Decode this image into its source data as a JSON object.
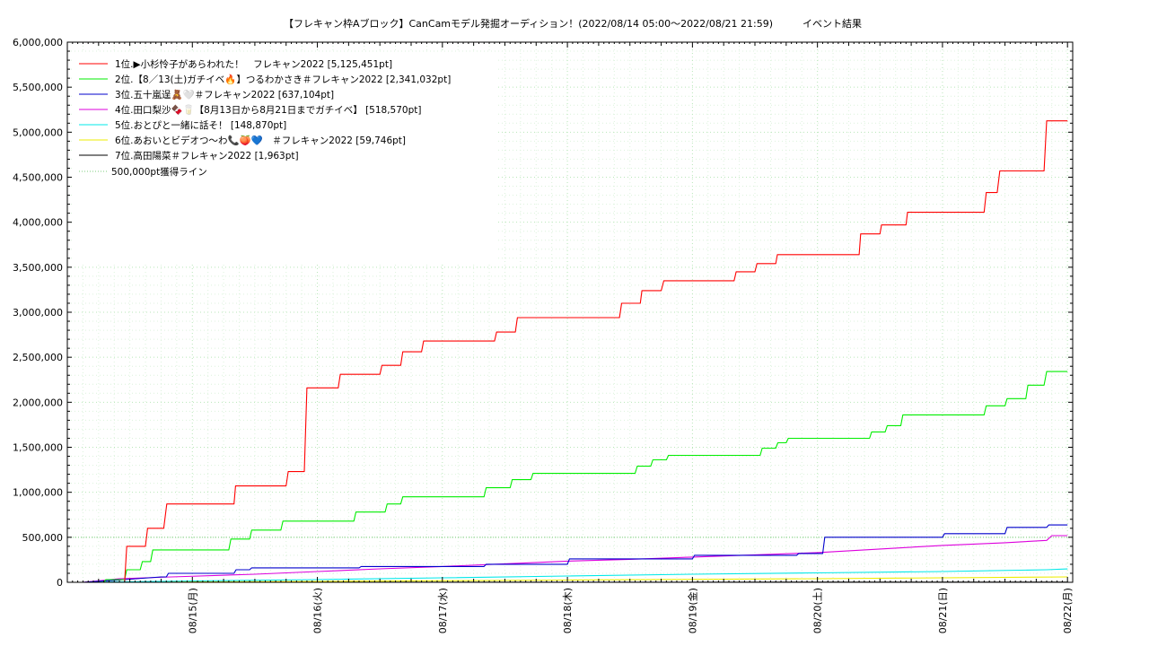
{
  "chart_data": {
    "type": "line",
    "title": "【フレキャン枠Aブロック】CanCamモデル発掘オーディション！(2022/08/14 05:00〜2022/08/21 21:59)　　　イベント結果",
    "xlabel": "",
    "ylabel": "",
    "ylim": [
      0,
      6000000
    ],
    "y_ticks": [
      {
        "value": 0,
        "label": "0"
      },
      {
        "value": 500000,
        "label": "500,000"
      },
      {
        "value": 1000000,
        "label": "1,000,000"
      },
      {
        "value": 1500000,
        "label": "1,500,000"
      },
      {
        "value": 2000000,
        "label": "2,000,000"
      },
      {
        "value": 2500000,
        "label": "2,500,000"
      },
      {
        "value": 3000000,
        "label": "3,000,000"
      },
      {
        "value": 3500000,
        "label": "3,500,000"
      },
      {
        "value": 4000000,
        "label": "4,000,000"
      },
      {
        "value": 4500000,
        "label": "4,500,000"
      },
      {
        "value": 5000000,
        "label": "5,000,000"
      },
      {
        "value": 5500000,
        "label": "5,500,000"
      },
      {
        "value": 6000000,
        "label": "6,000,000"
      }
    ],
    "x_unit": "hours since 2022/08/14 00:00",
    "xlim": [
      0,
      193
    ],
    "x_ticks": [
      {
        "value": 24,
        "label": "08/15(月)"
      },
      {
        "value": 48,
        "label": "08/16(火)"
      },
      {
        "value": 72,
        "label": "08/17(水)"
      },
      {
        "value": 96,
        "label": "08/18(木)"
      },
      {
        "value": 120,
        "label": "08/19(金)"
      },
      {
        "value": 144,
        "label": "08/20(土)"
      },
      {
        "value": 168,
        "label": "08/21(日)"
      },
      {
        "value": 192,
        "label": "08/22(月)"
      }
    ],
    "grid": true,
    "legend_position": "top-left",
    "reference_line": {
      "name": "500,000pt獲得ライン",
      "value": 500000,
      "color": "#7ccc7c"
    },
    "series": [
      {
        "name": "1位.▶小杉怜子があらわれた！　フレキャン2022 [5,125,451pt]",
        "color": "#ff0000",
        "x": [
          5,
          11,
          11.4,
          15,
          15.4,
          18.5,
          19.1,
          32,
          32.3,
          42,
          42.4,
          45.5,
          46,
          52,
          52.4,
          60,
          60.4,
          64,
          64.4,
          68,
          68.4,
          82,
          82.4,
          86,
          86.4,
          90,
          90.3,
          106,
          106.4,
          110,
          110.3,
          114,
          114.5,
          128,
          128.4,
          132,
          132.4,
          136,
          136.3,
          152,
          152.3,
          156,
          156.3,
          161,
          161.3,
          176,
          176.4,
          178.5,
          179,
          187.5,
          188,
          192
        ],
        "values": [
          0,
          0,
          400000,
          400000,
          600000,
          600000,
          870000,
          870000,
          1070000,
          1070000,
          1230000,
          1230000,
          2160000,
          2160000,
          2310000,
          2310000,
          2410000,
          2410000,
          2560000,
          2560000,
          2680000,
          2680000,
          2780000,
          2780000,
          2940000,
          2940000,
          2940000,
          2940000,
          3100000,
          3100000,
          3240000,
          3240000,
          3350000,
          3350000,
          3450000,
          3450000,
          3540000,
          3540000,
          3640000,
          3640000,
          3870000,
          3870000,
          3970000,
          3970000,
          4110000,
          4110000,
          4330000,
          4330000,
          4570000,
          4570000,
          5125451,
          5125451
        ]
      },
      {
        "name": "2位.【8／13(土)ガチイベ🔥】つるわかさき＃フレキャン2022 [2,341,032pt]",
        "color": "#00ee00",
        "x": [
          3,
          7,
          7.4,
          11,
          11.4,
          14,
          14.4,
          16,
          16.4,
          31,
          31.4,
          35,
          35.4,
          41,
          41.4,
          55,
          55.4,
          61,
          61.4,
          64,
          64.4,
          80,
          80.4,
          85,
          85.4,
          89,
          89.4,
          109,
          109.4,
          112,
          112.4,
          115,
          115.4,
          133,
          133.4,
          136,
          136.4,
          138,
          138.4,
          154,
          154.4,
          157,
          157.4,
          160,
          160.4,
          176,
          176.4,
          180,
          180.4,
          184,
          184.4,
          187.5,
          188,
          192
        ],
        "values": [
          0,
          0,
          30000,
          30000,
          140000,
          140000,
          230000,
          230000,
          360000,
          360000,
          480000,
          480000,
          580000,
          580000,
          680000,
          680000,
          780000,
          780000,
          870000,
          870000,
          950000,
          950000,
          1050000,
          1050000,
          1140000,
          1140000,
          1210000,
          1210000,
          1290000,
          1290000,
          1360000,
          1360000,
          1410000,
          1410000,
          1490000,
          1490000,
          1550000,
          1550000,
          1600000,
          1600000,
          1670000,
          1670000,
          1740000,
          1740000,
          1860000,
          1860000,
          1960000,
          1960000,
          2040000,
          2040000,
          2190000,
          2190000,
          2341032,
          2341032
        ]
      },
      {
        "name": "3位.五十嵐逞🧸🤍＃フレキャン2022 [637,104pt]",
        "color": "#0000cc",
        "x": [
          3,
          11,
          18,
          19,
          19.4,
          32,
          32.4,
          35,
          35.4,
          56,
          56.4,
          80,
          80.4,
          96,
          96.4,
          120,
          120.4,
          140,
          140.4,
          145,
          145.4,
          168,
          168.4,
          180,
          180.4,
          188,
          188.4,
          192
        ],
        "values": [
          0,
          30000,
          60000,
          60000,
          100000,
          100000,
          140000,
          140000,
          160000,
          160000,
          175000,
          175000,
          200000,
          200000,
          260000,
          260000,
          300000,
          300000,
          320000,
          320000,
          500000,
          500000,
          540000,
          540000,
          610000,
          610000,
          637104,
          637104
        ]
      },
      {
        "name": "4位.田口梨沙🍫🥛【8月13日から8月21日までガチイベ】 [518,570pt]",
        "color": "#dd00dd",
        "x": [
          3,
          10,
          20,
          36,
          48,
          60,
          72,
          84,
          96,
          108,
          120,
          132,
          144,
          156,
          168,
          180,
          188,
          189,
          192
        ],
        "values": [
          0,
          40000,
          60000,
          90000,
          120000,
          150000,
          175000,
          205000,
          235000,
          255000,
          280000,
          305000,
          330000,
          370000,
          410000,
          440000,
          465000,
          518570,
          518570
        ]
      },
      {
        "name": "5位.おとぴと一緒に話そ！ [148,870pt]",
        "color": "#00e8e8",
        "x": [
          3,
          10,
          24,
          48,
          72,
          96,
          120,
          144,
          168,
          188,
          192
        ],
        "values": [
          0,
          5000,
          15000,
          30000,
          50000,
          70000,
          90000,
          105000,
          120000,
          140000,
          148870
        ]
      },
      {
        "name": "6位.あおいとビデオつ〜わ📞🍑💙　＃フレキャン2022 [59,746pt]",
        "color": "#eeee00",
        "x": [
          3,
          48,
          96,
          144,
          192
        ],
        "values": [
          0,
          10000,
          25000,
          40000,
          59746
        ]
      },
      {
        "name": "7位.高田陽菜＃フレキャン2022 [1,963pt]",
        "color": "#000000",
        "x": [
          3,
          96,
          192
        ],
        "values": [
          0,
          1000,
          1963
        ]
      }
    ]
  }
}
